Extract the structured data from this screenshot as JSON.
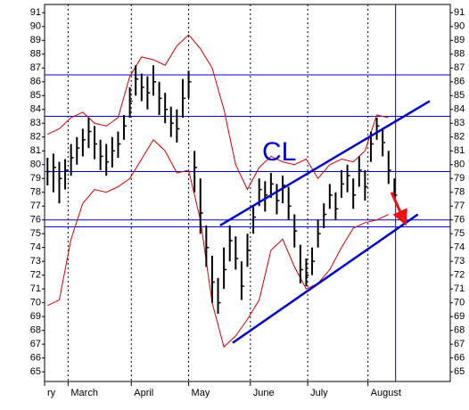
{
  "chart_data": {
    "type": "ohlc",
    "annotation": "CL",
    "xlim": [
      0,
      138
    ],
    "xticks": [
      {
        "value": 0,
        "label": "ry"
      },
      {
        "value": 8,
        "label": "March"
      },
      {
        "value": 29.5,
        "label": "April"
      },
      {
        "value": 49,
        "label": "May"
      },
      {
        "value": 70,
        "label": "June"
      },
      {
        "value": 89.5,
        "label": "July"
      },
      {
        "value": 110,
        "label": "August"
      }
    ],
    "ylim": [
      64.3,
      91.6
    ],
    "yticks": [
      65,
      66,
      67,
      68,
      69,
      70,
      71,
      72,
      73,
      74,
      75,
      76,
      77,
      78,
      79,
      80,
      81,
      82,
      83,
      84,
      85,
      86,
      87,
      88,
      89,
      90,
      91
    ],
    "grid": true,
    "bar_color": "#000000",
    "x": [
      1,
      3,
      5,
      7,
      9,
      11,
      13,
      15,
      17,
      19,
      21,
      23,
      25,
      27,
      29,
      31,
      33,
      35,
      37,
      39,
      41,
      43,
      45,
      47,
      49,
      51,
      53,
      55,
      57,
      59,
      61,
      63,
      65,
      67,
      69,
      71,
      73,
      75,
      77,
      79,
      81,
      83,
      85,
      87,
      89,
      91,
      93,
      95,
      97,
      99,
      101,
      103,
      105,
      107,
      109,
      111,
      113,
      115,
      117,
      119
    ],
    "high": [
      80.5,
      80.8,
      80.2,
      80.4,
      81.5,
      82.0,
      82.6,
      83.4,
      82.8,
      81.8,
      81.5,
      82.0,
      82.4,
      83.6,
      85.6,
      87.2,
      86.6,
      86.4,
      87.2,
      86.0,
      85.2,
      84.2,
      84.0,
      86.2,
      86.8,
      81.0,
      79.0,
      75.6,
      73.4,
      71.8,
      74.0,
      75.6,
      74.8,
      73.0,
      75.0,
      77.0,
      79.0,
      78.8,
      79.4,
      78.6,
      79.2,
      78.4,
      76.4,
      74.2,
      73.2,
      74.0,
      76.0,
      77.2,
      78.6,
      78.0,
      79.6,
      80.0,
      79.0,
      80.6,
      79.6,
      82.4,
      83.4,
      82.6,
      81.0,
      79.0
    ],
    "low": [
      78.5,
      78.0,
      77.2,
      78.2,
      79.2,
      80.0,
      80.6,
      81.2,
      80.4,
      79.6,
      79.2,
      79.8,
      80.5,
      81.8,
      83.4,
      85.0,
      84.6,
      84.0,
      85.0,
      83.6,
      83.0,
      82.0,
      81.6,
      83.4,
      84.8,
      78.0,
      75.0,
      72.6,
      70.0,
      69.2,
      71.0,
      73.0,
      72.4,
      70.2,
      72.6,
      75.0,
      77.0,
      76.6,
      77.6,
      76.4,
      77.2,
      76.0,
      74.0,
      71.4,
      71.2,
      72.0,
      74.0,
      75.4,
      76.8,
      76.0,
      77.6,
      78.0,
      76.8,
      78.4,
      77.4,
      80.2,
      81.8,
      80.6,
      78.6,
      77.4
    ],
    "close": [
      79.5,
      79.8,
      79.0,
      79.6,
      80.5,
      81.2,
      81.8,
      82.4,
      81.5,
      80.6,
      80.2,
      81.0,
      81.5,
      82.8,
      84.6,
      86.2,
      85.6,
      85.2,
      86.0,
      84.8,
      84.0,
      83.0,
      82.6,
      84.8,
      86.0,
      79.8,
      76.5,
      74.0,
      71.5,
      70.0,
      72.4,
      74.5,
      73.2,
      71.2,
      73.8,
      76.2,
      78.2,
      77.8,
      78.6,
      77.4,
      78.5,
      77.0,
      75.2,
      72.4,
      72.0,
      73.0,
      75.0,
      76.4,
      77.8,
      76.8,
      78.6,
      79.2,
      77.8,
      79.6,
      78.4,
      81.5,
      82.8,
      81.6,
      79.6,
      77.8
    ],
    "bands": {
      "color": "#d00000",
      "x": [
        1,
        5,
        9,
        13,
        17,
        21,
        25,
        29,
        33,
        37,
        41,
        45,
        49,
        53,
        57,
        61,
        65,
        69,
        73,
        77,
        81,
        85,
        89,
        93,
        97,
        101,
        105,
        109,
        113,
        117
      ],
      "upper": [
        82.2,
        82.6,
        83.4,
        83.8,
        83.0,
        82.8,
        83.4,
        86.4,
        87.8,
        87.6,
        87.2,
        88.6,
        89.4,
        88.4,
        87.0,
        84.0,
        80.0,
        78.2,
        79.8,
        80.6,
        80.2,
        80.0,
        80.4,
        79.0,
        80.0,
        80.4,
        80.2,
        81.0,
        83.6,
        83.4
      ],
      "lower": [
        69.8,
        70.2,
        74.6,
        77.2,
        78.2,
        78.0,
        78.4,
        79.0,
        80.4,
        81.8,
        81.0,
        79.4,
        79.6,
        76.0,
        70.0,
        66.8,
        67.6,
        68.8,
        70.2,
        73.8,
        74.6,
        72.6,
        71.0,
        71.4,
        72.4,
        74.0,
        75.4,
        75.8,
        76.0,
        76.4
      ]
    },
    "line_color": "#0000cc",
    "levels": [
      86.5,
      83.5,
      79.5,
      76,
      75.5
    ],
    "trendlines": [
      {
        "x": [
          59.7,
          131
        ],
        "y": [
          75.6,
          84.6
        ]
      },
      {
        "x": [
          64,
          127
        ],
        "y": [
          67.1,
          76.4
        ]
      }
    ],
    "marker_x": 119.4,
    "arrow": {
      "color": "#ee1111",
      "x": [
        118,
        122
      ],
      "y": [
        78,
        76.1
      ]
    }
  }
}
